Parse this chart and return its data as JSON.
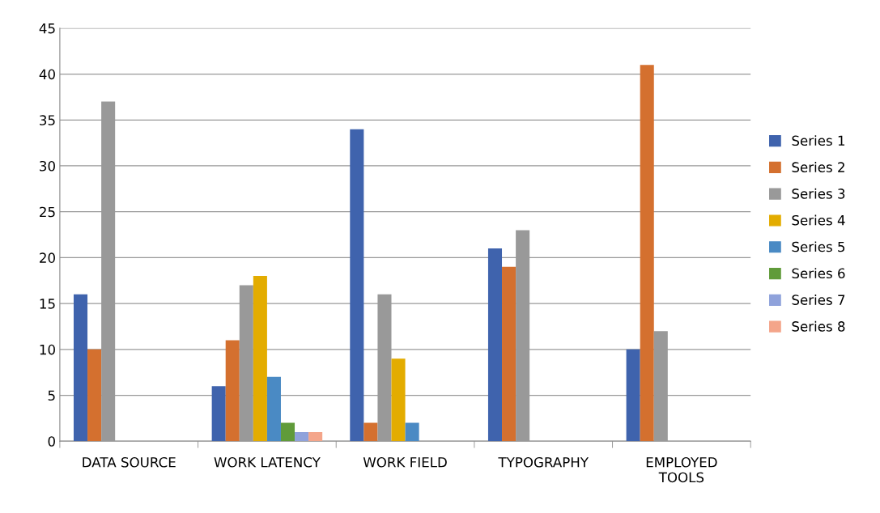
{
  "chart_data": {
    "type": "bar",
    "categories": [
      "DATA SOURCE",
      "WORK LATENCY",
      "WORK FIELD",
      "TYPOGRAPHY",
      "EMPLOYED\nTOOLS"
    ],
    "series": [
      {
        "name": "Series 1",
        "color": "#3f63ad",
        "values": [
          16,
          6,
          34,
          21,
          10
        ]
      },
      {
        "name": "Series 2",
        "color": "#d4702f",
        "values": [
          10,
          11,
          2,
          19,
          41
        ]
      },
      {
        "name": "Series 3",
        "color": "#999999",
        "values": [
          37,
          17,
          16,
          23,
          12
        ]
      },
      {
        "name": "Series 4",
        "color": "#e3ac00",
        "values": [
          null,
          18,
          9,
          null,
          null
        ]
      },
      {
        "name": "Series 5",
        "color": "#4a8ac4",
        "values": [
          null,
          7,
          2,
          null,
          null
        ]
      },
      {
        "name": "Series 6",
        "color": "#609b3a",
        "values": [
          null,
          2,
          null,
          null,
          null
        ]
      },
      {
        "name": "Series 7",
        "color": "#8fa2db",
        "values": [
          null,
          1,
          null,
          null,
          null
        ]
      },
      {
        "name": "Series 8",
        "color": "#f4a58a",
        "values": [
          null,
          1,
          null,
          null,
          null
        ]
      }
    ],
    "ylim": [
      0,
      45
    ],
    "yticks": [
      0,
      5,
      10,
      15,
      20,
      25,
      30,
      35,
      40,
      45
    ],
    "grid": "y",
    "legend": "right"
  }
}
